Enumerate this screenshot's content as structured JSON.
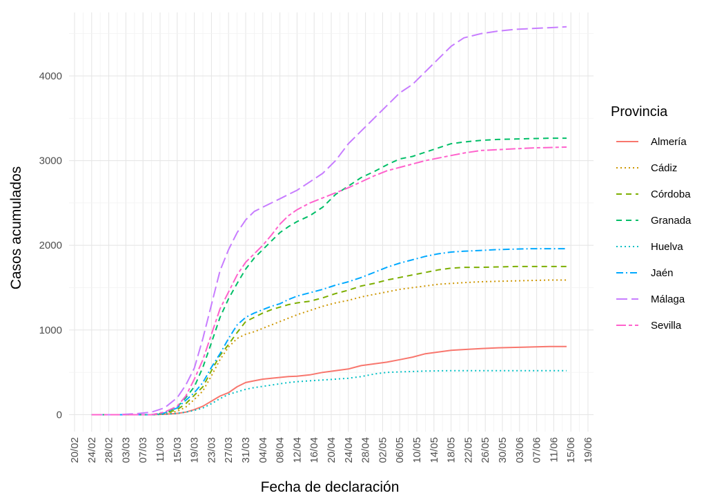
{
  "chart_data": {
    "type": "line",
    "xlabel": "Fecha de declaración",
    "ylabel": "Casos acumulados",
    "x_ticks": [
      "20/02",
      "24/02",
      "28/02",
      "03/03",
      "07/03",
      "11/03",
      "15/03",
      "19/03",
      "23/03",
      "27/03",
      "31/03",
      "04/04",
      "08/04",
      "12/04",
      "16/04",
      "20/04",
      "24/04",
      "28/04",
      "02/05",
      "06/05",
      "10/05",
      "14/05",
      "18/05",
      "22/05",
      "26/05",
      "30/05",
      "03/06",
      "07/06",
      "11/06",
      "15/06",
      "19/06"
    ],
    "y_ticks": [
      0,
      1000,
      2000,
      3000,
      4000
    ],
    "ylim": [
      -200,
      4750
    ],
    "xlim": [
      "2020-02-20",
      "2020-06-19"
    ],
    "grid": true,
    "legend": {
      "title": "Provincia",
      "position": "right"
    },
    "x": [
      "2020-02-24",
      "2020-03-01",
      "2020-03-05",
      "2020-03-09",
      "2020-03-12",
      "2020-03-15",
      "2020-03-17",
      "2020-03-19",
      "2020-03-21",
      "2020-03-23",
      "2020-03-25",
      "2020-03-27",
      "2020-03-29",
      "2020-03-31",
      "2020-04-02",
      "2020-04-04",
      "2020-04-06",
      "2020-04-08",
      "2020-04-10",
      "2020-04-12",
      "2020-04-15",
      "2020-04-18",
      "2020-04-21",
      "2020-04-24",
      "2020-04-27",
      "2020-04-30",
      "2020-05-03",
      "2020-05-06",
      "2020-05-09",
      "2020-05-12",
      "2020-05-15",
      "2020-05-18",
      "2020-05-21",
      "2020-05-25",
      "2020-05-29",
      "2020-06-02",
      "2020-06-06",
      "2020-06-10",
      "2020-06-14"
    ],
    "series": [
      {
        "name": "Almería",
        "color": "#F8766D",
        "dash": "solid",
        "values": [
          0,
          0,
          0,
          0,
          5,
          15,
          30,
          60,
          100,
          160,
          220,
          260,
          330,
          380,
          400,
          420,
          430,
          440,
          450,
          455,
          470,
          500,
          520,
          540,
          580,
          600,
          620,
          650,
          680,
          720,
          740,
          760,
          770,
          780,
          790,
          795,
          800,
          805,
          805
        ]
      },
      {
        "name": "Cádiz",
        "color": "#CD9600",
        "dash": "dotted",
        "values": [
          0,
          0,
          0,
          0,
          10,
          40,
          90,
          180,
          280,
          460,
          650,
          800,
          900,
          950,
          980,
          1020,
          1060,
          1100,
          1140,
          1180,
          1230,
          1280,
          1320,
          1350,
          1390,
          1420,
          1450,
          1480,
          1500,
          1520,
          1540,
          1550,
          1560,
          1570,
          1575,
          1580,
          1585,
          1590,
          1590
        ]
      },
      {
        "name": "Córdoba",
        "color": "#7CAE00",
        "dash": "dashed",
        "values": [
          0,
          0,
          0,
          0,
          15,
          60,
          130,
          230,
          330,
          520,
          700,
          830,
          970,
          1100,
          1150,
          1200,
          1240,
          1270,
          1300,
          1320,
          1340,
          1380,
          1430,
          1470,
          1520,
          1550,
          1590,
          1620,
          1650,
          1680,
          1710,
          1730,
          1740,
          1740,
          1745,
          1750,
          1750,
          1750,
          1750
        ]
      },
      {
        "name": "Granada",
        "color": "#00BE67",
        "dash": "dashed",
        "values": [
          0,
          0,
          0,
          0,
          20,
          90,
          200,
          330,
          560,
          850,
          1150,
          1370,
          1550,
          1720,
          1850,
          1950,
          2050,
          2150,
          2220,
          2280,
          2350,
          2450,
          2600,
          2700,
          2800,
          2870,
          2950,
          3020,
          3050,
          3100,
          3150,
          3200,
          3220,
          3240,
          3250,
          3255,
          3260,
          3265,
          3265
        ]
      },
      {
        "name": "Huelva",
        "color": "#00BFC4",
        "dash": "dotted",
        "values": [
          0,
          0,
          0,
          0,
          5,
          15,
          30,
          50,
          80,
          130,
          190,
          240,
          270,
          300,
          320,
          335,
          350,
          365,
          380,
          390,
          400,
          410,
          420,
          430,
          450,
          480,
          500,
          505,
          510,
          515,
          518,
          520,
          520,
          520,
          520,
          520,
          520,
          520,
          520
        ]
      },
      {
        "name": "Jaén",
        "color": "#00A9FF",
        "dash": "dashdot",
        "values": [
          0,
          0,
          0,
          0,
          20,
          80,
          170,
          260,
          380,
          560,
          720,
          900,
          1060,
          1150,
          1200,
          1240,
          1280,
          1310,
          1360,
          1400,
          1440,
          1480,
          1530,
          1570,
          1620,
          1680,
          1740,
          1790,
          1830,
          1870,
          1900,
          1920,
          1930,
          1940,
          1950,
          1955,
          1960,
          1960,
          1960
        ]
      },
      {
        "name": "Málaga",
        "color": "#C77CFF",
        "dash": "longdash",
        "values": [
          0,
          0,
          10,
          30,
          80,
          200,
          350,
          550,
          900,
          1300,
          1700,
          1950,
          2150,
          2300,
          2400,
          2450,
          2500,
          2550,
          2600,
          2650,
          2750,
          2850,
          3000,
          3200,
          3350,
          3500,
          3650,
          3800,
          3900,
          4050,
          4200,
          4350,
          4450,
          4500,
          4530,
          4550,
          4560,
          4570,
          4580
        ]
      },
      {
        "name": "Sevilla",
        "color": "#FF61CC",
        "dash": "twodash",
        "values": [
          0,
          0,
          0,
          0,
          30,
          100,
          220,
          420,
          650,
          950,
          1250,
          1450,
          1650,
          1800,
          1900,
          2000,
          2120,
          2250,
          2350,
          2420,
          2500,
          2560,
          2620,
          2680,
          2750,
          2820,
          2880,
          2920,
          2960,
          3000,
          3030,
          3060,
          3090,
          3120,
          3130,
          3140,
          3150,
          3155,
          3160
        ]
      }
    ]
  }
}
